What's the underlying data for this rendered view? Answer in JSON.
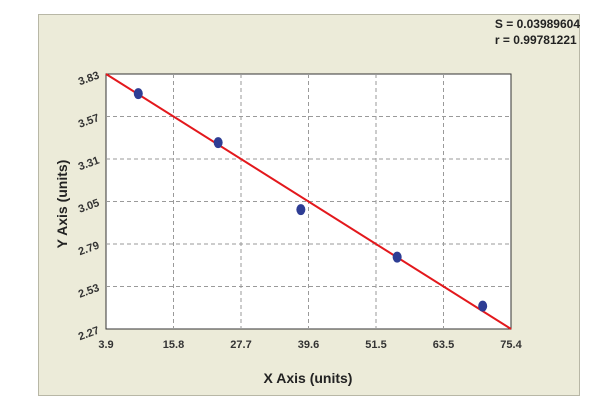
{
  "chart_data": {
    "type": "scatter",
    "title": "",
    "xlabel": "X Axis (units)",
    "ylabel": "Y Axis (units)",
    "xlim": [
      3.9,
      75.4
    ],
    "ylim": [
      2.27,
      3.83
    ],
    "x_ticks": [
      "3.9",
      "15.8",
      "27.7",
      "39.6",
      "51.5",
      "63.5",
      "75.4"
    ],
    "y_ticks": [
      "3.83",
      "3.57",
      "3.31",
      "3.05",
      "2.79",
      "2.53",
      "2.27"
    ],
    "grid": true,
    "stats": {
      "s_label": "S = 0.03989604",
      "r_label": "r = 0.99781221"
    },
    "points": [
      {
        "x": 9.6,
        "y": 3.71
      },
      {
        "x": 23.7,
        "y": 3.41
      },
      {
        "x": 38.3,
        "y": 3.0
      },
      {
        "x": 55.3,
        "y": 2.71
      },
      {
        "x": 70.4,
        "y": 2.41
      }
    ],
    "fit_line": {
      "x": [
        3.9,
        75.4
      ],
      "y": [
        3.83,
        2.27
      ]
    },
    "colors": {
      "point": "#2e3d94",
      "fit_line": "#e3181c",
      "background": "#ecebd9",
      "plot_area": "#ffffff",
      "grid": "#9a9a9a"
    }
  }
}
